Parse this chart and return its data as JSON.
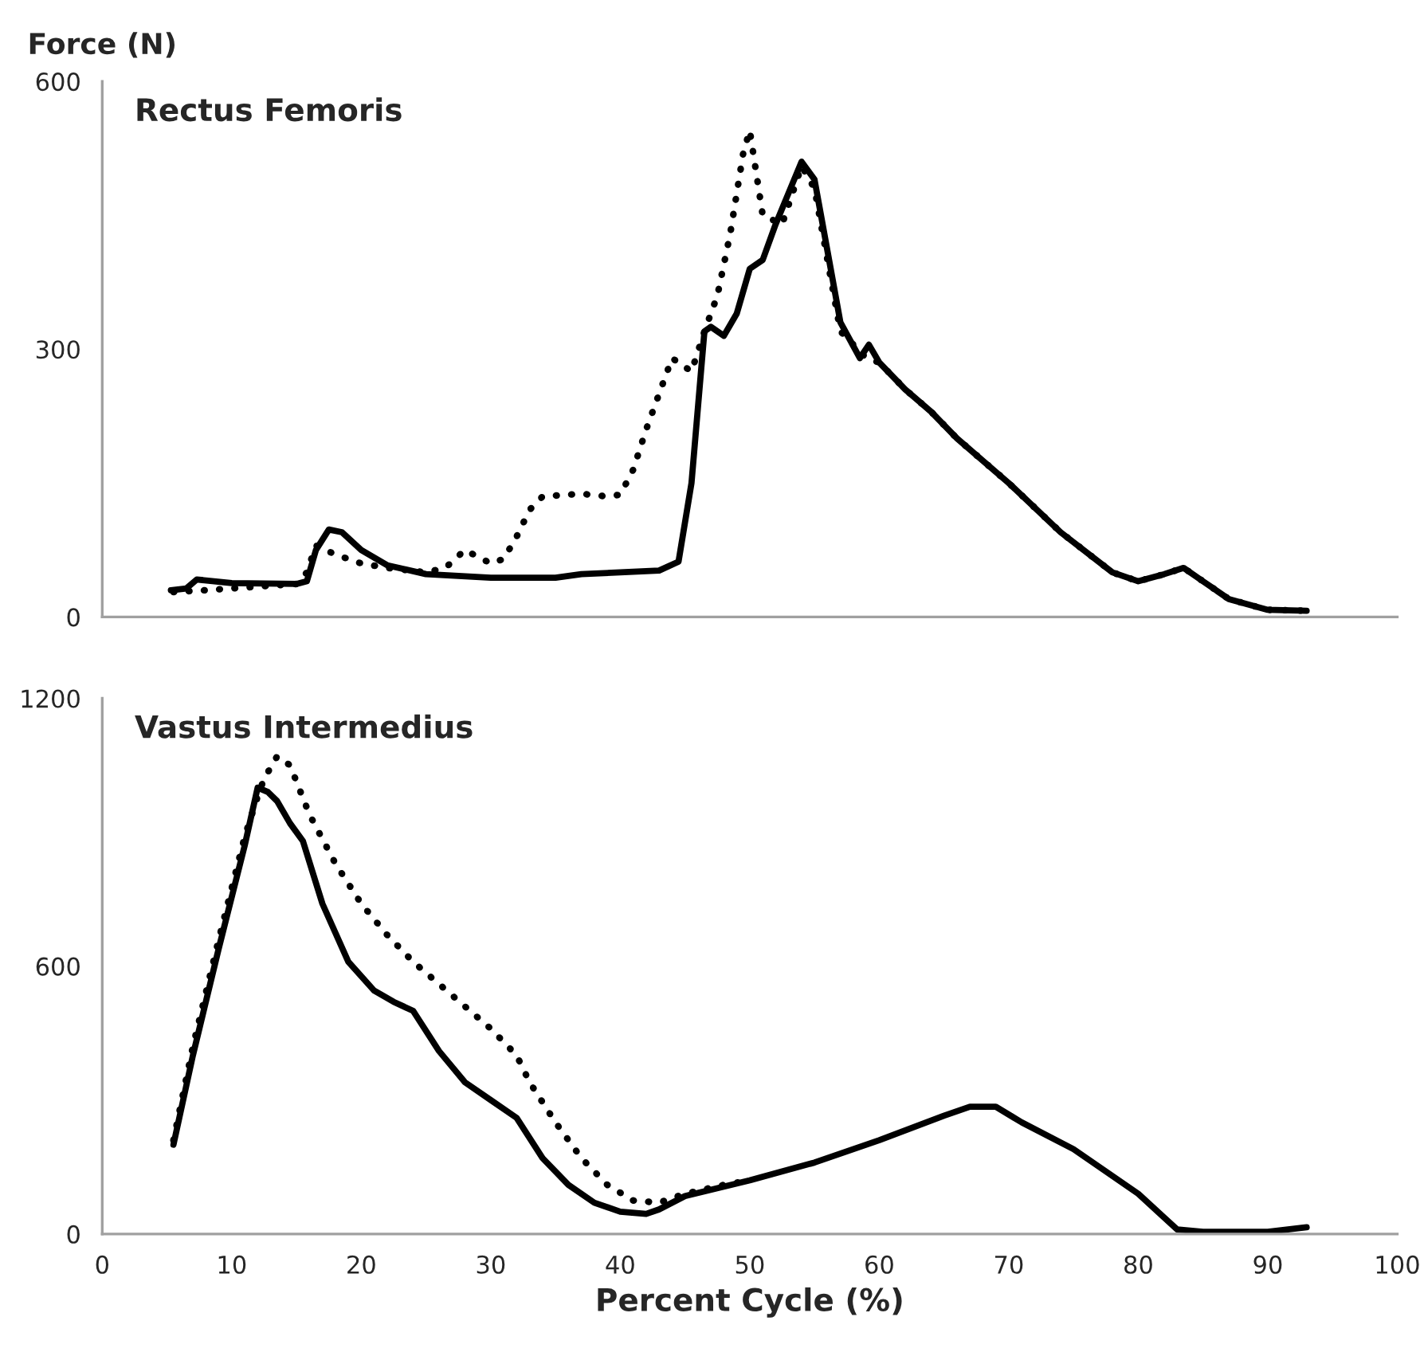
{
  "chart_data": [
    {
      "type": "line",
      "title": "Rectus Femoris",
      "ylabel": "Force (N)",
      "xlim": [
        0,
        100
      ],
      "xticks": [
        0,
        10,
        20,
        30,
        40,
        50,
        60,
        70,
        80,
        90,
        100
      ],
      "ylim": [
        0,
        600
      ],
      "yticks": [
        0,
        300,
        600
      ],
      "tick_labels": "y",
      "series": [
        {
          "color": "#000000",
          "line_style": "solid",
          "x": [
            5.3,
            6.5,
            7.3,
            10,
            15,
            15.8,
            16.5,
            17.5,
            18.5,
            20,
            22,
            25,
            30,
            35,
            37,
            40,
            43,
            44.5,
            45.5,
            46.5,
            47,
            48,
            49,
            50,
            51,
            52,
            54,
            55,
            56,
            57,
            58.5,
            59.2,
            60,
            62,
            64,
            66,
            70,
            74,
            78,
            80,
            82,
            83.5,
            85,
            87,
            90,
            93
          ],
          "values": [
            30,
            32,
            42,
            38,
            37,
            40,
            75,
            98,
            95,
            75,
            58,
            48,
            44,
            44,
            48,
            50,
            52,
            62,
            150,
            320,
            325,
            315,
            340,
            390,
            400,
            440,
            510,
            490,
            410,
            330,
            290,
            305,
            285,
            255,
            230,
            200,
            150,
            95,
            50,
            40,
            48,
            55,
            40,
            20,
            8,
            7
          ]
        },
        {
          "color": "#000000",
          "line_style": "dotted",
          "x": [
            5.5,
            8,
            13,
            15,
            15.8,
            16.5,
            18,
            20,
            22,
            25,
            26.5,
            28,
            30,
            31,
            32,
            33,
            34,
            37,
            39,
            40,
            41,
            42,
            43,
            44,
            45.5,
            46.5,
            47.5,
            48.5,
            49.5,
            50,
            51,
            52.5,
            54,
            55,
            56,
            57,
            59,
            60,
            62,
            64,
            66,
            70,
            74,
            78,
            80,
            82,
            83.5,
            85,
            87,
            90,
            93
          ],
          "values": [
            28,
            30,
            35,
            37,
            50,
            80,
            70,
            60,
            55,
            50,
            55,
            75,
            60,
            65,
            90,
            120,
            135,
            138,
            135,
            137,
            165,
            210,
            250,
            290,
            275,
            320,
            360,
            430,
            520,
            545,
            450,
            440,
            505,
            480,
            400,
            320,
            290,
            285,
            255,
            230,
            200,
            150,
            95,
            50,
            40,
            48,
            55,
            40,
            20,
            8,
            7
          ]
        }
      ]
    },
    {
      "type": "line",
      "title": "Vastus Intermedius",
      "xlabel": "Percent Cycle (%)",
      "xlim": [
        0,
        100
      ],
      "xticks": [
        0,
        10,
        20,
        30,
        40,
        50,
        60,
        70,
        80,
        90,
        100
      ],
      "ylim": [
        0,
        1200
      ],
      "yticks": [
        0,
        600,
        1200
      ],
      "series": [
        {
          "color": "#000000",
          "line_style": "solid",
          "x": [
            5.5,
            7,
            9,
            11,
            12,
            12.8,
            13.5,
            14.5,
            15.5,
            17,
            19,
            21,
            22.5,
            24,
            26,
            28,
            30,
            32,
            34,
            36,
            38,
            40,
            42,
            43,
            45,
            50,
            55,
            60,
            65,
            67,
            69,
            71,
            75,
            80,
            83,
            85,
            90,
            93
          ],
          "values": [
            200,
            400,
            640,
            870,
            1000,
            990,
            970,
            920,
            880,
            740,
            610,
            545,
            520,
            500,
            410,
            340,
            300,
            260,
            170,
            110,
            70,
            50,
            45,
            55,
            85,
            120,
            160,
            210,
            265,
            285,
            285,
            250,
            190,
            90,
            10,
            5,
            5,
            15
          ]
        },
        {
          "color": "#000000",
          "line_style": "dotted",
          "x": [
            5.5,
            7,
            9,
            11,
            12,
            12.5,
            13.5,
            14.5,
            16,
            18,
            20,
            22,
            24,
            26,
            28,
            30,
            32,
            33,
            35,
            37,
            39,
            41,
            43,
            45,
            48,
            50
          ],
          "values": [
            210,
            420,
            660,
            890,
            980,
            1020,
            1070,
            1050,
            940,
            830,
            740,
            670,
            610,
            560,
            510,
            460,
            400,
            340,
            250,
            170,
            110,
            75,
            70,
            90,
            110,
            120
          ]
        }
      ]
    }
  ]
}
